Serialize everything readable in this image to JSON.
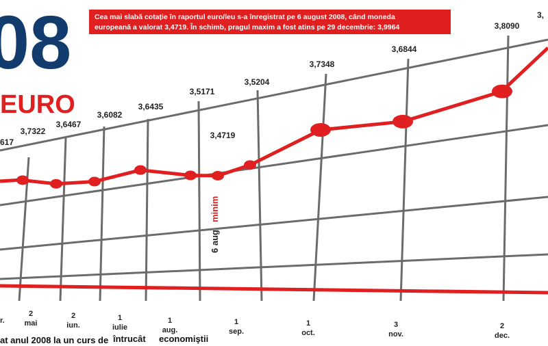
{
  "chart_data": {
    "type": "line",
    "title": "08",
    "subtitle": "EURO",
    "annotation": [
      "Cea mai slabă cotație în raportul euro/leu s-a înregistrat pe 6 august 2008, când moneda",
      "europeană a valorat 3,4719.  În schimb, pragul maxim a fost atins pe 29 decembrie: 3,9964"
    ],
    "series": [
      {
        "color": "#e02020",
        "values": [
          3.7322,
          3.6467,
          3.6082,
          3.6435,
          3.5171,
          3.4719,
          3.5204,
          3.7348,
          3.6844,
          3.809
        ],
        "value_labels": [
          "3,7322",
          "3,6467",
          "3,6082",
          "3,6435",
          "3,5171",
          "3,4719",
          "3,5204",
          "3,7348",
          "3,6844",
          "3,8090"
        ]
      }
    ],
    "cut_labels": [
      "617",
      "3,"
    ],
    "min_marker": [
      "6 aug",
      "minim"
    ],
    "x_labels": [
      [
        "r."
      ],
      [
        "2",
        "mai"
      ],
      [
        "2",
        "iun."
      ],
      [
        "1",
        "iulie"
      ],
      [
        "1",
        "aug."
      ],
      [
        "1",
        "sep."
      ],
      [
        "1",
        "oct."
      ],
      [
        "3",
        "nov."
      ],
      [
        "2",
        "dec."
      ]
    ],
    "footer": [
      "at anul 2008 la un curs de",
      "întrucât",
      "economiştii"
    ]
  }
}
